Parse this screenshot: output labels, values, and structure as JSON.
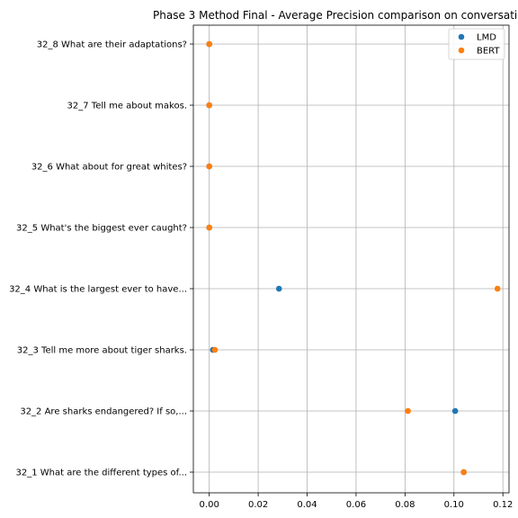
{
  "chart_data": {
    "type": "scatter",
    "title": "Phase 3 Method Final - Average Precision comparison on conversatio",
    "xlabel": "",
    "ylabel": "",
    "xlim": [
      -0.0065,
      0.1225
    ],
    "x_ticks": [
      0.0,
      0.02,
      0.04,
      0.06,
      0.08,
      0.1,
      0.12
    ],
    "x_tick_labels": [
      "0.00",
      "0.02",
      "0.04",
      "0.06",
      "0.08",
      "0.10",
      "0.12"
    ],
    "categories": [
      "32_1 What are the different types of...",
      "32_2 Are sharks endangered? If so,...",
      "32_3 Tell me more about tiger sharks.",
      "32_4 What is the largest ever to have...",
      "32_5 What's the biggest ever caught?",
      "32_6 What about for great whites?",
      "32_7 Tell me about makos.",
      "32_8 What are their adaptations?"
    ],
    "grid": true,
    "legend_position": "top-right",
    "series": [
      {
        "name": "LMD",
        "color": "#1f77b4",
        "values": [
          0.104,
          0.1005,
          0.0015,
          0.0285,
          0.0,
          0.0,
          0.0,
          0.0
        ]
      },
      {
        "name": "BERT",
        "color": "#ff7f0e",
        "values": [
          0.104,
          0.0812,
          0.0023,
          0.1178,
          0.0,
          0.0,
          0.0,
          0.0
        ]
      }
    ]
  }
}
